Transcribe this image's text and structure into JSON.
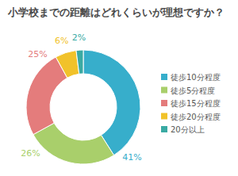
{
  "chart_data": {
    "type": "donut",
    "title": "小学校までの距離はどれくらいが理想ですか？",
    "categories": [
      "徒歩10分程度",
      "徒歩5分程度",
      "徒歩15分程度",
      "徒歩20分程度",
      "20分以上"
    ],
    "values": [
      41,
      26,
      25,
      6,
      2
    ],
    "value_labels": [
      "41%",
      "26%",
      "25%",
      "6%",
      "2%"
    ],
    "colors": [
      "#37aecb",
      "#a9cf6b",
      "#e47c7c",
      "#f1c22a",
      "#3aaaa3"
    ],
    "data_labels": true,
    "legend": "right"
  }
}
